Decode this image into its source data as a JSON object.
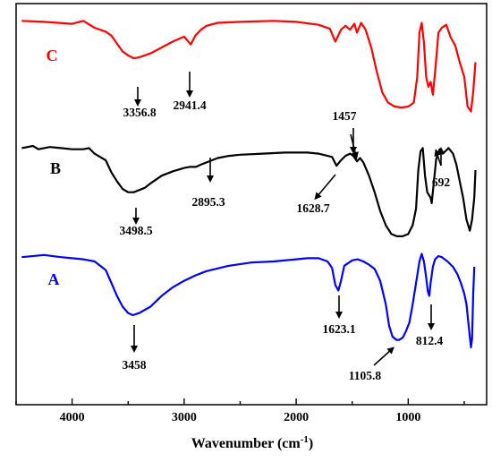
{
  "chart_data": {
    "type": "line",
    "title": "",
    "xlabel": "Wavenumber (cm",
    "xlabel_sup": "-1",
    "xlabel_close": ")",
    "ylabel": "",
    "xlim": [
      4500,
      300
    ],
    "x_reversed": true,
    "y_ticks_shown": false,
    "grid": false,
    "x_ticks": [
      4000,
      3000,
      2000,
      1000
    ],
    "x_tick_labels": [
      "4000",
      "3000",
      "2000",
      "1000"
    ],
    "series": [
      {
        "name": "C",
        "color": "#ff0000",
        "points": [
          [
            4450,
            0.97
          ],
          [
            4250,
            0.96
          ],
          [
            4000,
            0.94
          ],
          [
            3900,
            0.97
          ],
          [
            3800,
            0.9
          ],
          [
            3700,
            0.86
          ],
          [
            3650,
            0.82
          ],
          [
            3600,
            0.74
          ],
          [
            3550,
            0.66
          ],
          [
            3500,
            0.62
          ],
          [
            3450,
            0.59
          ],
          [
            3400,
            0.6
          ],
          [
            3350,
            0.62
          ],
          [
            3300,
            0.64
          ],
          [
            3200,
            0.7
          ],
          [
            3100,
            0.76
          ],
          [
            3000,
            0.81
          ],
          [
            2941,
            0.73
          ],
          [
            2900,
            0.82
          ],
          [
            2850,
            0.88
          ],
          [
            2800,
            0.92
          ],
          [
            2700,
            0.95
          ],
          [
            2500,
            0.96
          ],
          [
            2200,
            0.97
          ],
          [
            2000,
            0.96
          ],
          [
            1800,
            0.93
          ],
          [
            1700,
            0.89
          ],
          [
            1650,
            0.76
          ],
          [
            1600,
            0.88
          ],
          [
            1560,
            0.92
          ],
          [
            1520,
            0.88
          ],
          [
            1480,
            0.94
          ],
          [
            1457,
            0.85
          ],
          [
            1420,
            0.95
          ],
          [
            1380,
            0.88
          ],
          [
            1330,
            0.7
          ],
          [
            1280,
            0.45
          ],
          [
            1230,
            0.24
          ],
          [
            1180,
            0.14
          ],
          [
            1120,
            0.1
          ],
          [
            1060,
            0.09
          ],
          [
            1000,
            0.1
          ],
          [
            950,
            0.14
          ],
          [
            920,
            0.4
          ],
          [
            900,
            0.85
          ],
          [
            880,
            0.95
          ],
          [
            860,
            0.75
          ],
          [
            840,
            0.4
          ],
          [
            820,
            0.3
          ],
          [
            800,
            0.35
          ],
          [
            780,
            0.22
          ],
          [
            760,
            0.45
          ],
          [
            730,
            0.85
          ],
          [
            700,
            0.9
          ],
          [
            660,
            0.93
          ],
          [
            620,
            0.8
          ],
          [
            580,
            0.72
          ],
          [
            540,
            0.55
          ],
          [
            500,
            0.4
          ],
          [
            470,
            0.1
          ],
          [
            440,
            0.05
          ],
          [
            420,
            0.25
          ],
          [
            400,
            0.55
          ]
        ]
      },
      {
        "name": "B",
        "color": "#000000",
        "points": [
          [
            4450,
            0.85
          ],
          [
            4350,
            0.87
          ],
          [
            4300,
            0.84
          ],
          [
            4200,
            0.86
          ],
          [
            4100,
            0.85
          ],
          [
            4000,
            0.84
          ],
          [
            3900,
            0.84
          ],
          [
            3850,
            0.85
          ],
          [
            3800,
            0.8
          ],
          [
            3750,
            0.77
          ],
          [
            3700,
            0.74
          ],
          [
            3650,
            0.63
          ],
          [
            3600,
            0.55
          ],
          [
            3550,
            0.48
          ],
          [
            3500,
            0.45
          ],
          [
            3450,
            0.45
          ],
          [
            3400,
            0.47
          ],
          [
            3350,
            0.49
          ],
          [
            3300,
            0.53
          ],
          [
            3200,
            0.6
          ],
          [
            3100,
            0.64
          ],
          [
            3000,
            0.67
          ],
          [
            2950,
            0.68
          ],
          [
            2895,
            0.68
          ],
          [
            2850,
            0.7
          ],
          [
            2800,
            0.72
          ],
          [
            2700,
            0.76
          ],
          [
            2600,
            0.78
          ],
          [
            2500,
            0.79
          ],
          [
            2300,
            0.8
          ],
          [
            2100,
            0.81
          ],
          [
            1900,
            0.81
          ],
          [
            1800,
            0.8
          ],
          [
            1720,
            0.78
          ],
          [
            1680,
            0.77
          ],
          [
            1640,
            0.69
          ],
          [
            1600,
            0.74
          ],
          [
            1560,
            0.78
          ],
          [
            1520,
            0.8
          ],
          [
            1490,
            0.78
          ],
          [
            1457,
            0.73
          ],
          [
            1430,
            0.76
          ],
          [
            1400,
            0.72
          ],
          [
            1350,
            0.6
          ],
          [
            1300,
            0.45
          ],
          [
            1250,
            0.28
          ],
          [
            1200,
            0.15
          ],
          [
            1150,
            0.07
          ],
          [
            1100,
            0.05
          ],
          [
            1050,
            0.05
          ],
          [
            1000,
            0.07
          ],
          [
            960,
            0.15
          ],
          [
            930,
            0.3
          ],
          [
            910,
            0.65
          ],
          [
            890,
            0.82
          ],
          [
            870,
            0.85
          ],
          [
            850,
            0.6
          ],
          [
            830,
            0.45
          ],
          [
            800,
            0.4
          ],
          [
            790,
            0.35
          ],
          [
            770,
            0.55
          ],
          [
            750,
            0.75
          ],
          [
            720,
            0.84
          ],
          [
            692,
            0.8
          ],
          [
            670,
            0.82
          ],
          [
            640,
            0.85
          ],
          [
            600,
            0.8
          ],
          [
            570,
            0.7
          ],
          [
            540,
            0.55
          ],
          [
            510,
            0.4
          ],
          [
            480,
            0.2
          ],
          [
            450,
            0.1
          ],
          [
            430,
            0.2
          ],
          [
            410,
            0.4
          ],
          [
            400,
            0.65
          ]
        ]
      },
      {
        "name": "A",
        "color": "#0000ff",
        "points": [
          [
            4450,
            0.94
          ],
          [
            4250,
            0.96
          ],
          [
            4100,
            0.94
          ],
          [
            4000,
            0.93
          ],
          [
            3900,
            0.92
          ],
          [
            3800,
            0.9
          ],
          [
            3750,
            0.86
          ],
          [
            3700,
            0.82
          ],
          [
            3650,
            0.7
          ],
          [
            3600,
            0.58
          ],
          [
            3550,
            0.48
          ],
          [
            3500,
            0.42
          ],
          [
            3458,
            0.4
          ],
          [
            3400,
            0.42
          ],
          [
            3350,
            0.45
          ],
          [
            3300,
            0.48
          ],
          [
            3200,
            0.58
          ],
          [
            3100,
            0.66
          ],
          [
            3000,
            0.72
          ],
          [
            2900,
            0.77
          ],
          [
            2800,
            0.81
          ],
          [
            2600,
            0.86
          ],
          [
            2400,
            0.89
          ],
          [
            2200,
            0.9
          ],
          [
            2000,
            0.92
          ],
          [
            1900,
            0.93
          ],
          [
            1800,
            0.93
          ],
          [
            1720,
            0.9
          ],
          [
            1680,
            0.84
          ],
          [
            1650,
            0.68
          ],
          [
            1623,
            0.63
          ],
          [
            1600,
            0.72
          ],
          [
            1570,
            0.86
          ],
          [
            1500,
            0.91
          ],
          [
            1450,
            0.92
          ],
          [
            1400,
            0.9
          ],
          [
            1350,
            0.87
          ],
          [
            1300,
            0.83
          ],
          [
            1250,
            0.72
          ],
          [
            1200,
            0.5
          ],
          [
            1170,
            0.3
          ],
          [
            1140,
            0.2
          ],
          [
            1105,
            0.17
          ],
          [
            1080,
            0.17
          ],
          [
            1050,
            0.19
          ],
          [
            1020,
            0.25
          ],
          [
            990,
            0.33
          ],
          [
            960,
            0.5
          ],
          [
            930,
            0.7
          ],
          [
            900,
            0.9
          ],
          [
            880,
            0.97
          ],
          [
            860,
            0.9
          ],
          [
            840,
            0.75
          ],
          [
            825,
            0.62
          ],
          [
            812,
            0.58
          ],
          [
            800,
            0.7
          ],
          [
            780,
            0.85
          ],
          [
            760,
            0.92
          ],
          [
            730,
            0.95
          ],
          [
            700,
            0.94
          ],
          [
            650,
            0.9
          ],
          [
            600,
            0.85
          ],
          [
            560,
            0.78
          ],
          [
            530,
            0.7
          ],
          [
            500,
            0.6
          ],
          [
            480,
            0.5
          ],
          [
            470,
            0.4
          ],
          [
            450,
            0.2
          ],
          [
            440,
            0.1
          ],
          [
            430,
            0.18
          ],
          [
            420,
            0.6
          ],
          [
            410,
            0.85
          ]
        ]
      }
    ],
    "annotations": [
      {
        "series": "C",
        "text": "3356.8",
        "x": 3450
      },
      {
        "series": "C",
        "text": "2941.4",
        "x": 2941
      },
      {
        "series": "B",
        "text": "3498.5",
        "x": 3450
      },
      {
        "series": "B",
        "text": "2895.3",
        "x": 2780
      },
      {
        "series": "B",
        "text": "1628.7",
        "x": 1640
      },
      {
        "series": "B",
        "text": "1457",
        "x": 1457
      },
      {
        "series": "B",
        "text": "692",
        "x": 692
      },
      {
        "series": "A",
        "text": "3458",
        "x": 3458
      },
      {
        "series": "A",
        "text": "1623.1",
        "x": 1623
      },
      {
        "series": "A",
        "text": "1105.8",
        "x": 1105
      },
      {
        "series": "A",
        "text": "812.4",
        "x": 812
      }
    ]
  }
}
